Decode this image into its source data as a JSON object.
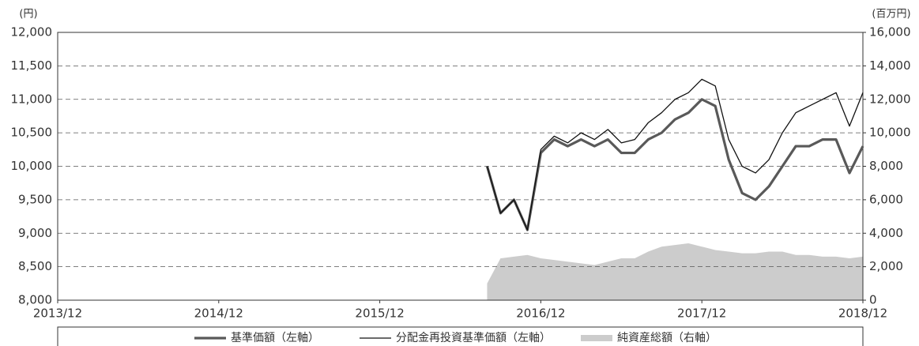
{
  "chart_data": {
    "type": "line",
    "y_label": "(円)",
    "y2_label": "(百万円)",
    "x": [
      "2016/08",
      "2016/09",
      "2016/10",
      "2016/11",
      "2016/12",
      "2017/01",
      "2017/02",
      "2017/03",
      "2017/04",
      "2017/05",
      "2017/06",
      "2017/07",
      "2017/08",
      "2017/09",
      "2017/10",
      "2017/11",
      "2017/12",
      "2018/01",
      "2018/02",
      "2018/03",
      "2018/04",
      "2018/05",
      "2018/06",
      "2018/07",
      "2018/08",
      "2018/09",
      "2018/10",
      "2018/11",
      "2018/12"
    ],
    "xlim": [
      "2013/12",
      "2018/12"
    ],
    "xticks": [
      "2013/12",
      "2014/12",
      "2015/12",
      "2016/12",
      "2017/12",
      "2018/12"
    ],
    "series": [
      {
        "name": "基準価額（左軸）",
        "color": "#595959",
        "kind": "line",
        "width": 3.2,
        "values": [
          10000,
          9300,
          9500,
          9050,
          10200,
          10400,
          10300,
          10400,
          10300,
          10400,
          10200,
          10200,
          10400,
          10500,
          10700,
          10800,
          11000,
          10900,
          10100,
          9600,
          9500,
          9700,
          10000,
          10300,
          10300,
          10400,
          10400,
          9900,
          10300
        ]
      },
      {
        "name": "分配金再投資基準価額（左軸）",
        "color": "#111111",
        "kind": "line",
        "width": 1.3,
        "values": [
          10000,
          9300,
          9500,
          9050,
          10250,
          10450,
          10350,
          10500,
          10400,
          10550,
          10350,
          10400,
          10650,
          10800,
          11000,
          11100,
          11300,
          11200,
          10400,
          10000,
          9900,
          10100,
          10500,
          10800,
          10900,
          11000,
          11100,
          10600,
          11100
        ]
      },
      {
        "name": "純資産総額（右軸）",
        "color": "#cccccc",
        "kind": "area",
        "axis": "y2",
        "values": [
          1000,
          2500,
          2600,
          2700,
          2500,
          2400,
          2300,
          2200,
          2100,
          2300,
          2500,
          2500,
          2900,
          3200,
          3300,
          3400,
          3200,
          3000,
          2900,
          2800,
          2800,
          2900,
          2900,
          2700,
          2700,
          2600,
          2600,
          2500,
          2600
        ]
      }
    ],
    "ylim": [
      8000,
      12000
    ],
    "yticks": [
      {
        "value": 8000,
        "label": "8,000"
      },
      {
        "value": 8500,
        "label": "8,500"
      },
      {
        "value": 9000,
        "label": "9,000"
      },
      {
        "value": 9500,
        "label": "9,500"
      },
      {
        "value": 10000,
        "label": "10,000"
      },
      {
        "value": 10500,
        "label": "10,500"
      },
      {
        "value": 11000,
        "label": "11,000"
      },
      {
        "value": 11500,
        "label": "11,500"
      },
      {
        "value": 12000,
        "label": "12,000"
      }
    ],
    "y2lim": [
      0,
      16000
    ],
    "y2ticks": [
      0,
      {
        "value": 2000,
        "label": "2,000"
      },
      {
        "value": 4000,
        "label": "4,000"
      },
      {
        "value": 6000,
        "label": "6,000"
      },
      {
        "value": 8000,
        "label": "8,000"
      },
      {
        "value": 10000,
        "label": "10,000"
      },
      {
        "value": 12000,
        "label": "12,000"
      },
      {
        "value": 14000,
        "label": "14,000"
      },
      {
        "value": 16000,
        "label": "16,000"
      }
    ],
    "grid": true,
    "legend": "bottom"
  }
}
